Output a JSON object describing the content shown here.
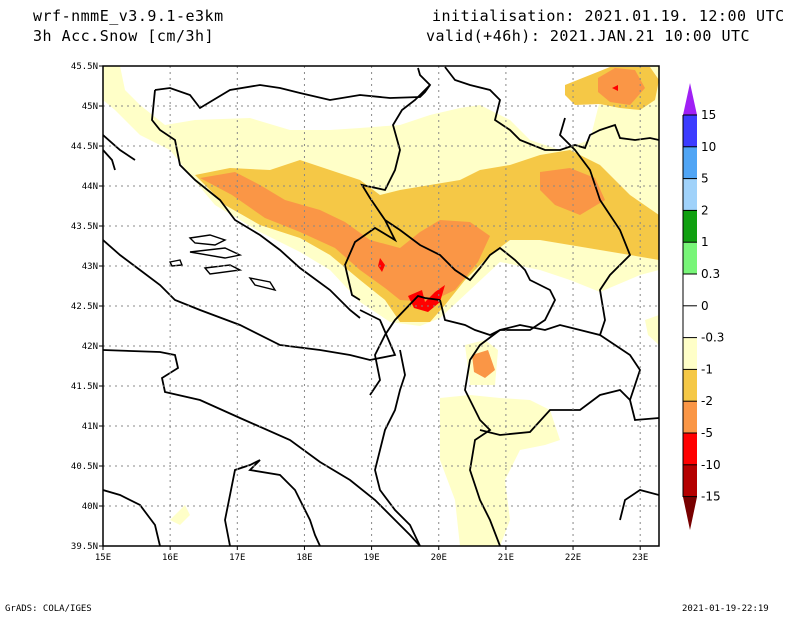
{
  "header": {
    "model": "wrf-nmmE_v3.9.1-e3km",
    "field": "3h Acc.Snow [cm/3h]",
    "initialisation": "initialisation: 2021.01.19.  12:00 UTC",
    "valid": "valid(+46h): 2021.JAN.21 10:00 UTC"
  },
  "map": {
    "lon_labels": [
      "15E",
      "16E",
      "17E",
      "18E",
      "19E",
      "20E",
      "21E",
      "22E",
      "23E"
    ],
    "lat_labels": [
      "45.5N",
      "45N",
      "44.5N",
      "44N",
      "43.5N",
      "43N",
      "42.5N",
      "42N",
      "41.5N",
      "41N",
      "40.5N",
      "40N",
      "39.5N"
    ],
    "lon_range": [
      15,
      23.28
    ],
    "lat_range": [
      39.5,
      45.5
    ]
  },
  "colorbar": {
    "labels": [
      "15",
      "10",
      "5",
      "2",
      "1",
      "0.3",
      "0",
      "-0.3",
      "-1",
      "-2",
      "-5",
      "-10",
      "-15"
    ],
    "colors": {
      "over": "#a020f5",
      "b10_15": "#3c3cff",
      "b5_10": "#50a5f5",
      "b2_5": "#a0d2fa",
      "b1_2": "#10a010",
      "b03_1": "#78f578",
      "neutral": "#ffffff",
      "m03_1": "#ffffc8",
      "m1_2": "#f5c846",
      "m2_5": "#fa9646",
      "m5_10": "#ff0000",
      "m10_15": "#b40000",
      "under": "#780000"
    }
  },
  "footer": {
    "left": "GrADS: COLA/IGES",
    "right": "2021-01-19-22:19"
  }
}
